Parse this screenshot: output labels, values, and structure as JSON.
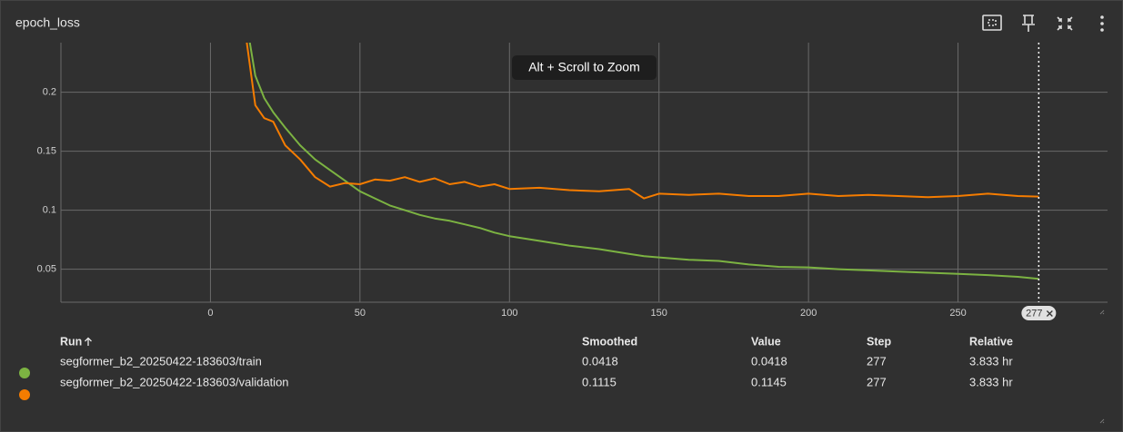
{
  "title": "epoch_loss",
  "hint": "Alt + Scroll to Zoom",
  "chart_data": {
    "type": "line",
    "x": [
      12,
      15,
      18,
      21,
      25,
      30,
      35,
      40,
      45,
      50,
      55,
      60,
      65,
      70,
      75,
      80,
      85,
      90,
      95,
      100,
      110,
      120,
      130,
      140,
      145,
      150,
      160,
      170,
      180,
      190,
      200,
      210,
      220,
      230,
      240,
      250,
      260,
      270,
      277
    ],
    "series": [
      {
        "name": "segformer_b2_20250422-183603/train",
        "color": "#7cb342",
        "values": [
          0.26,
          0.214,
          0.195,
          0.183,
          0.17,
          0.155,
          0.143,
          0.134,
          0.125,
          0.116,
          0.11,
          0.104,
          0.1,
          0.096,
          0.093,
          0.091,
          0.088,
          0.085,
          0.081,
          0.078,
          0.074,
          0.07,
          0.067,
          0.063,
          0.061,
          0.06,
          0.058,
          0.057,
          0.054,
          0.052,
          0.0515,
          0.05,
          0.049,
          0.048,
          0.047,
          0.046,
          0.045,
          0.0435,
          0.0418
        ]
      },
      {
        "name": "segformer_b2_20250422-183603/validation",
        "color": "#f57c00",
        "values": [
          0.245,
          0.189,
          0.178,
          0.175,
          0.155,
          0.143,
          0.128,
          0.12,
          0.123,
          0.122,
          0.126,
          0.125,
          0.128,
          0.124,
          0.127,
          0.122,
          0.124,
          0.12,
          0.122,
          0.118,
          0.119,
          0.117,
          0.116,
          0.118,
          0.11,
          0.114,
          0.113,
          0.114,
          0.112,
          0.112,
          0.114,
          0.112,
          0.113,
          0.112,
          0.111,
          0.112,
          0.114,
          0.112,
          0.1115
        ]
      }
    ],
    "xlim": [
      -50,
      300
    ],
    "ylim": [
      0.022,
      0.242
    ],
    "xticks": [
      0,
      50,
      100,
      150,
      200,
      250
    ],
    "yticks": [
      0.05,
      0.1,
      0.15,
      0.2
    ],
    "grid": true,
    "cursor_step": 277
  },
  "table": {
    "columns": [
      "Run",
      "Smoothed",
      "Value",
      "Step",
      "Relative"
    ],
    "rows": [
      {
        "smoothed": 0.0418,
        "value": 0.0418,
        "step": 277,
        "relative": "3.833 hr"
      },
      {
        "smoothed": 0.1115,
        "value": 0.1145,
        "step": 277,
        "relative": "3.833 hr"
      }
    ]
  }
}
